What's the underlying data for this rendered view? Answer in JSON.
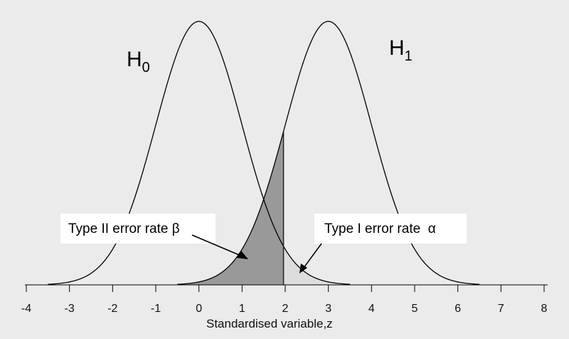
{
  "chart_data": {
    "type": "area",
    "title": "",
    "xlabel": "Standardised variable,z",
    "ylabel": "",
    "xlim": [
      -4,
      8
    ],
    "x_ticks": [
      "-4",
      "-3",
      "-2",
      "-1",
      "0",
      "1",
      "2",
      "3",
      "4",
      "5",
      "6",
      "7",
      "8"
    ],
    "series": [
      {
        "label_main": "H",
        "label_sub": "0",
        "mean": 0,
        "sd": 1
      },
      {
        "label_main": "H",
        "label_sub": "1",
        "mean": 3,
        "sd": 1
      }
    ],
    "critical_value": 1.96,
    "annotations": [
      {
        "text": "Type II error rate β",
        "region": "H1 below critical value",
        "fill": "#999999"
      },
      {
        "text": "Type I error rate  α",
        "region": "H0 above critical value",
        "fill": "#dddddd"
      }
    ],
    "grid": false,
    "legend": "none"
  }
}
